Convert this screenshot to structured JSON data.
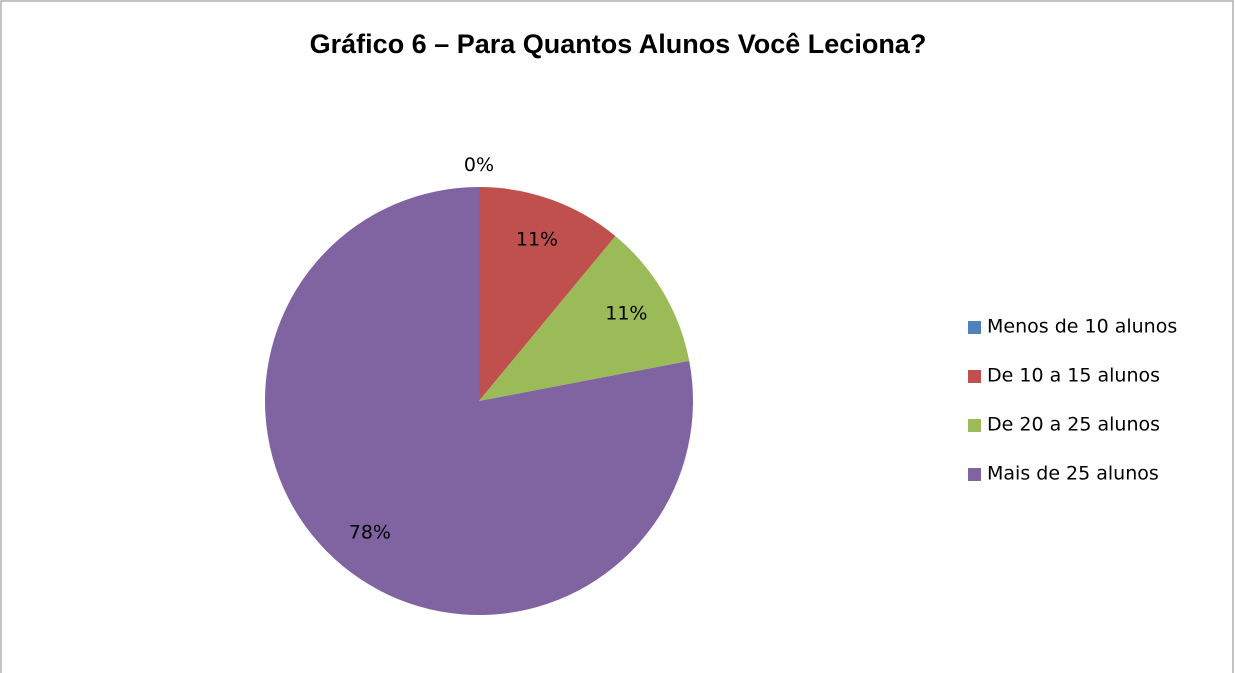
{
  "chart_data": {
    "type": "pie",
    "title": "Gráfico 6 – Para Quantos Alunos Você Leciona?",
    "categories": [
      "Menos de 10 alunos",
      "De 10 a 15 alunos",
      "De 20 a 25 alunos",
      "Mais de 25 alunos"
    ],
    "values": [
      0,
      11,
      11,
      78
    ],
    "value_labels": [
      "0%",
      "11%",
      "11%",
      "78%"
    ],
    "colors": [
      "#4f81bd",
      "#c0504d",
      "#9bbb59",
      "#8064a2"
    ],
    "legend": "right"
  }
}
